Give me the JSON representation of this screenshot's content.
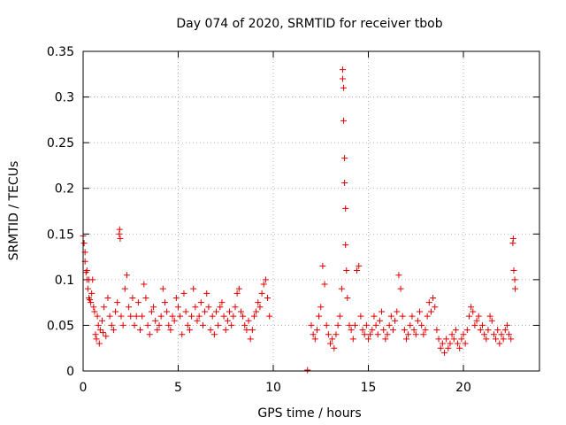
{
  "chart_data": {
    "type": "scatter",
    "title": "Day 074 of 2020, SRMTID for receiver tbob",
    "xlabel": "GPS time / hours",
    "ylabel": "SRMTID / TECUs",
    "xlim": [
      0,
      24
    ],
    "ylim": [
      0,
      0.35
    ],
    "x_ticks": [
      0,
      5,
      10,
      15,
      20
    ],
    "x_tick_labels": [
      "0",
      "5",
      "10",
      "15",
      "20"
    ],
    "y_ticks": [
      0,
      0.05,
      0.1,
      0.15,
      0.2,
      0.25,
      0.3,
      0.35
    ],
    "y_tick_labels": [
      "0",
      "0.05",
      "0.1",
      "0.15",
      "0.2",
      "0.25",
      "0.3",
      "0.35"
    ],
    "grid": true,
    "marker": "plus",
    "color": "#e00000",
    "series": [
      {
        "name": "SRMTID",
        "points": [
          [
            0.0,
            0.148
          ],
          [
            0.05,
            0.14
          ],
          [
            0.1,
            0.13
          ],
          [
            0.1,
            0.12
          ],
          [
            0.15,
            0.108
          ],
          [
            0.2,
            0.11
          ],
          [
            0.2,
            0.1
          ],
          [
            0.25,
            0.09
          ],
          [
            0.3,
            0.1
          ],
          [
            0.3,
            0.08
          ],
          [
            0.35,
            0.078
          ],
          [
            0.4,
            0.075
          ],
          [
            0.45,
            0.085
          ],
          [
            0.5,
            0.1
          ],
          [
            0.55,
            0.07
          ],
          [
            0.6,
            0.065
          ],
          [
            0.65,
            0.04
          ],
          [
            0.7,
            0.035
          ],
          [
            0.75,
            0.06
          ],
          [
            0.8,
            0.05
          ],
          [
            0.85,
            0.03
          ],
          [
            0.9,
            0.045
          ],
          [
            1.0,
            0.055
          ],
          [
            1.05,
            0.042
          ],
          [
            1.1,
            0.07
          ],
          [
            1.2,
            0.038
          ],
          [
            1.3,
            0.08
          ],
          [
            1.4,
            0.06
          ],
          [
            1.5,
            0.05
          ],
          [
            1.6,
            0.045
          ],
          [
            1.7,
            0.065
          ],
          [
            1.8,
            0.075
          ],
          [
            1.9,
            0.15
          ],
          [
            1.92,
            0.155
          ],
          [
            1.95,
            0.145
          ],
          [
            2.0,
            0.06
          ],
          [
            2.1,
            0.05
          ],
          [
            2.2,
            0.09
          ],
          [
            2.3,
            0.105
          ],
          [
            2.4,
            0.07
          ],
          [
            2.5,
            0.06
          ],
          [
            2.6,
            0.08
          ],
          [
            2.7,
            0.05
          ],
          [
            2.8,
            0.06
          ],
          [
            2.9,
            0.075
          ],
          [
            3.0,
            0.045
          ],
          [
            3.1,
            0.06
          ],
          [
            3.2,
            0.095
          ],
          [
            3.3,
            0.08
          ],
          [
            3.4,
            0.05
          ],
          [
            3.5,
            0.04
          ],
          [
            3.6,
            0.065
          ],
          [
            3.7,
            0.07
          ],
          [
            3.8,
            0.055
          ],
          [
            3.9,
            0.045
          ],
          [
            4.0,
            0.05
          ],
          [
            4.1,
            0.06
          ],
          [
            4.2,
            0.09
          ],
          [
            4.3,
            0.075
          ],
          [
            4.4,
            0.065
          ],
          [
            4.5,
            0.05
          ],
          [
            4.6,
            0.045
          ],
          [
            4.7,
            0.06
          ],
          [
            4.8,
            0.055
          ],
          [
            4.9,
            0.08
          ],
          [
            5.0,
            0.07
          ],
          [
            5.1,
            0.06
          ],
          [
            5.2,
            0.04
          ],
          [
            5.3,
            0.085
          ],
          [
            5.4,
            0.065
          ],
          [
            5.5,
            0.05
          ],
          [
            5.6,
            0.045
          ],
          [
            5.7,
            0.06
          ],
          [
            5.8,
            0.09
          ],
          [
            5.9,
            0.07
          ],
          [
            6.0,
            0.055
          ],
          [
            6.1,
            0.06
          ],
          [
            6.2,
            0.075
          ],
          [
            6.3,
            0.05
          ],
          [
            6.4,
            0.065
          ],
          [
            6.5,
            0.085
          ],
          [
            6.6,
            0.07
          ],
          [
            6.7,
            0.045
          ],
          [
            6.8,
            0.06
          ],
          [
            6.9,
            0.04
          ],
          [
            7.0,
            0.065
          ],
          [
            7.1,
            0.05
          ],
          [
            7.2,
            0.07
          ],
          [
            7.3,
            0.075
          ],
          [
            7.4,
            0.06
          ],
          [
            7.5,
            0.045
          ],
          [
            7.6,
            0.055
          ],
          [
            7.7,
            0.065
          ],
          [
            7.8,
            0.05
          ],
          [
            7.9,
            0.06
          ],
          [
            8.0,
            0.07
          ],
          [
            8.1,
            0.085
          ],
          [
            8.2,
            0.09
          ],
          [
            8.3,
            0.065
          ],
          [
            8.4,
            0.06
          ],
          [
            8.5,
            0.05
          ],
          [
            8.6,
            0.045
          ],
          [
            8.7,
            0.055
          ],
          [
            8.8,
            0.035
          ],
          [
            8.9,
            0.045
          ],
          [
            9.0,
            0.06
          ],
          [
            9.1,
            0.065
          ],
          [
            9.2,
            0.075
          ],
          [
            9.3,
            0.07
          ],
          [
            9.4,
            0.085
          ],
          [
            9.5,
            0.095
          ],
          [
            9.6,
            0.1
          ],
          [
            9.7,
            0.08
          ],
          [
            9.8,
            0.06
          ],
          [
            11.8,
            0.001
          ],
          [
            12.0,
            0.05
          ],
          [
            12.1,
            0.04
          ],
          [
            12.2,
            0.035
          ],
          [
            12.3,
            0.045
          ],
          [
            12.4,
            0.06
          ],
          [
            12.5,
            0.07
          ],
          [
            12.6,
            0.115
          ],
          [
            12.7,
            0.095
          ],
          [
            12.8,
            0.05
          ],
          [
            12.9,
            0.04
          ],
          [
            13.0,
            0.03
          ],
          [
            13.1,
            0.035
          ],
          [
            13.2,
            0.025
          ],
          [
            13.3,
            0.04
          ],
          [
            13.4,
            0.05
          ],
          [
            13.5,
            0.06
          ],
          [
            13.6,
            0.09
          ],
          [
            13.65,
            0.32
          ],
          [
            13.65,
            0.33
          ],
          [
            13.7,
            0.31
          ],
          [
            13.7,
            0.274
          ],
          [
            13.75,
            0.233
          ],
          [
            13.75,
            0.206
          ],
          [
            13.8,
            0.178
          ],
          [
            13.8,
            0.138
          ],
          [
            13.85,
            0.11
          ],
          [
            13.9,
            0.08
          ],
          [
            14.0,
            0.05
          ],
          [
            14.1,
            0.045
          ],
          [
            14.2,
            0.035
          ],
          [
            14.3,
            0.05
          ],
          [
            14.4,
            0.11
          ],
          [
            14.5,
            0.115
          ],
          [
            14.6,
            0.06
          ],
          [
            14.7,
            0.045
          ],
          [
            14.8,
            0.04
          ],
          [
            14.9,
            0.05
          ],
          [
            15.0,
            0.035
          ],
          [
            15.1,
            0.04
          ],
          [
            15.2,
            0.045
          ],
          [
            15.3,
            0.06
          ],
          [
            15.4,
            0.05
          ],
          [
            15.5,
            0.04
          ],
          [
            15.6,
            0.055
          ],
          [
            15.7,
            0.065
          ],
          [
            15.8,
            0.045
          ],
          [
            15.9,
            0.035
          ],
          [
            16.0,
            0.04
          ],
          [
            16.1,
            0.05
          ],
          [
            16.2,
            0.06
          ],
          [
            16.3,
            0.045
          ],
          [
            16.4,
            0.055
          ],
          [
            16.5,
            0.065
          ],
          [
            16.6,
            0.105
          ],
          [
            16.7,
            0.09
          ],
          [
            16.8,
            0.06
          ],
          [
            16.9,
            0.045
          ],
          [
            17.0,
            0.035
          ],
          [
            17.1,
            0.04
          ],
          [
            17.2,
            0.05
          ],
          [
            17.3,
            0.06
          ],
          [
            17.4,
            0.045
          ],
          [
            17.5,
            0.04
          ],
          [
            17.6,
            0.055
          ],
          [
            17.7,
            0.065
          ],
          [
            17.8,
            0.05
          ],
          [
            17.9,
            0.04
          ],
          [
            18.0,
            0.045
          ],
          [
            18.1,
            0.06
          ],
          [
            18.2,
            0.075
          ],
          [
            18.3,
            0.065
          ],
          [
            18.4,
            0.08
          ],
          [
            18.5,
            0.07
          ],
          [
            18.6,
            0.045
          ],
          [
            18.7,
            0.035
          ],
          [
            18.8,
            0.025
          ],
          [
            18.9,
            0.03
          ],
          [
            19.0,
            0.02
          ],
          [
            19.1,
            0.035
          ],
          [
            19.2,
            0.025
          ],
          [
            19.3,
            0.03
          ],
          [
            19.4,
            0.04
          ],
          [
            19.5,
            0.035
          ],
          [
            19.6,
            0.045
          ],
          [
            19.7,
            0.03
          ],
          [
            19.8,
            0.025
          ],
          [
            19.9,
            0.035
          ],
          [
            20.0,
            0.04
          ],
          [
            20.1,
            0.03
          ],
          [
            20.2,
            0.045
          ],
          [
            20.3,
            0.06
          ],
          [
            20.4,
            0.07
          ],
          [
            20.5,
            0.065
          ],
          [
            20.6,
            0.05
          ],
          [
            20.7,
            0.055
          ],
          [
            20.8,
            0.06
          ],
          [
            20.9,
            0.045
          ],
          [
            21.0,
            0.05
          ],
          [
            21.1,
            0.04
          ],
          [
            21.2,
            0.035
          ],
          [
            21.3,
            0.045
          ],
          [
            21.4,
            0.06
          ],
          [
            21.5,
            0.055
          ],
          [
            21.6,
            0.04
          ],
          [
            21.7,
            0.035
          ],
          [
            21.8,
            0.045
          ],
          [
            21.9,
            0.03
          ],
          [
            22.0,
            0.04
          ],
          [
            22.1,
            0.035
          ],
          [
            22.2,
            0.045
          ],
          [
            22.3,
            0.05
          ],
          [
            22.4,
            0.04
          ],
          [
            22.5,
            0.035
          ],
          [
            22.6,
            0.14
          ],
          [
            22.62,
            0.145
          ],
          [
            22.65,
            0.11
          ],
          [
            22.7,
            0.1
          ],
          [
            22.72,
            0.09
          ]
        ]
      }
    ]
  }
}
